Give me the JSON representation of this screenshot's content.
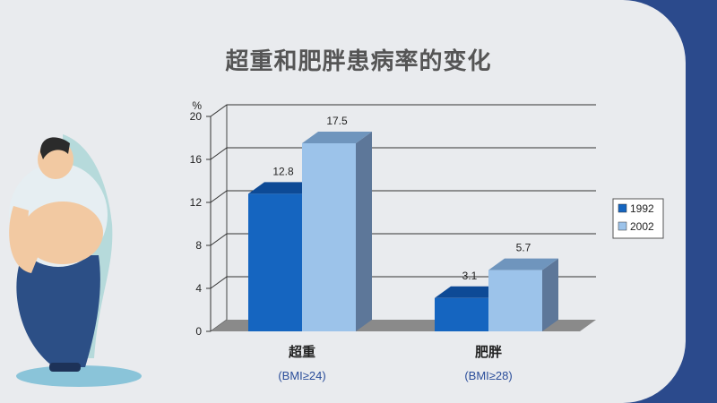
{
  "title": "超重和肥胖患病率的变化",
  "chart_data": {
    "type": "bar",
    "categories": [
      "超重",
      "肥胖"
    ],
    "category_notes": [
      "(BMI≥24)",
      "(BMI≥28)"
    ],
    "series": [
      {
        "name": "1992",
        "values": [
          12.8,
          3.1
        ],
        "color": "#1565c0"
      },
      {
        "name": "2002",
        "values": [
          17.5,
          5.7
        ],
        "color": "#9cc3ea"
      }
    ],
    "yunit": "%",
    "ylim": [
      0,
      20
    ],
    "yticks": [
      0,
      4,
      8,
      12,
      16,
      20
    ],
    "grid": true,
    "legend": "right",
    "style": "3d"
  }
}
